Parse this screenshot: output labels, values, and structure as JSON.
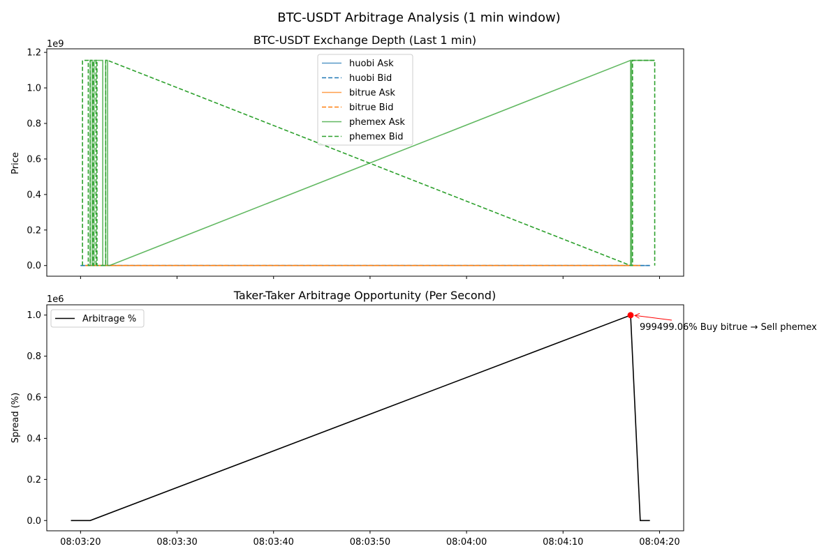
{
  "suptitle": "BTC-USDT Arbitrage Analysis (1 min window)",
  "x_ticks": [
    "08:03:20",
    "08:03:30",
    "08:03:40",
    "08:03:50",
    "08:04:00",
    "08:04:10",
    "08:04:20"
  ],
  "chart_data": [
    {
      "type": "line",
      "title": "BTC-USDT Exchange Depth (Last 1 min)",
      "xlabel": "",
      "ylabel": "Price",
      "y_scale_label": "1e9",
      "xlim": [
        "08:03:16.5",
        "08:04:22.5"
      ],
      "ylim": [
        -0.06,
        1.22
      ],
      "y_ticks": [
        "0.0",
        "0.2",
        "0.4",
        "0.6",
        "0.8",
        "1.0",
        "1.2"
      ],
      "y_unit_multiplier": 1000000000,
      "legend_position": "top-center",
      "grid": false,
      "series": [
        {
          "name": "huobi Ask",
          "color": "#1f77b4",
          "dash": "solid",
          "alpha": 0.75,
          "points": [
            [
              "08:03:20",
              0.0
            ],
            [
              "08:04:19",
              0.0
            ]
          ]
        },
        {
          "name": "huobi Bid",
          "color": "#1f77b4",
          "dash": "dashed",
          "alpha": 1.0,
          "points": [
            [
              "08:03:20",
              0.0
            ],
            [
              "08:04:19",
              0.0
            ]
          ]
        },
        {
          "name": "bitrue Ask",
          "color": "#ff7f0e",
          "dash": "solid",
          "alpha": 0.75,
          "points": [
            [
              "08:03:20.5",
              0.0
            ],
            [
              "08:04:18",
              0.0
            ]
          ]
        },
        {
          "name": "bitrue Bid",
          "color": "#ff7f0e",
          "dash": "dashed",
          "alpha": 1.0,
          "points": [
            [
              "08:03:20.5",
              0.0
            ],
            [
              "08:04:18",
              0.0
            ]
          ]
        },
        {
          "name": "phemex Ask",
          "color": "#2ca02c",
          "dash": "solid",
          "alpha": 0.75,
          "points": [
            [
              "08:03:21",
              0.0
            ],
            [
              "08:03:21",
              1.155
            ],
            [
              "08:03:21.2",
              1.155
            ],
            [
              "08:03:21.2",
              0.0
            ],
            [
              "08:03:21.4",
              0.0
            ],
            [
              "08:03:21.4",
              1.155
            ],
            [
              "08:03:22.3",
              1.155
            ],
            [
              "08:03:22.3",
              0.0
            ],
            [
              "08:03:22.6",
              0.0
            ],
            [
              "08:03:22.6",
              1.155
            ],
            [
              "08:03:22.8",
              1.155
            ],
            [
              "08:03:22.8",
              0.0
            ],
            [
              "08:03:23",
              0.0
            ],
            [
              "08:04:17",
              1.155
            ],
            [
              "08:04:17",
              0.0
            ],
            [
              "08:04:17.1",
              0.0
            ],
            [
              "08:04:17.1",
              1.155
            ],
            [
              "08:04:19.5",
              1.155
            ]
          ]
        },
        {
          "name": "phemex Bid",
          "color": "#2ca02c",
          "dash": "dashed",
          "alpha": 1.0,
          "points": [
            [
              "08:03:20.2",
              0.0
            ],
            [
              "08:03:20.2",
              1.155
            ],
            [
              "08:03:20.8",
              1.155
            ],
            [
              "08:03:20.8",
              0.0
            ],
            [
              "08:03:21",
              0.0
            ],
            [
              "08:03:21",
              1.155
            ],
            [
              "08:03:21.3",
              1.155
            ],
            [
              "08:03:21.3",
              0.0
            ],
            [
              "08:03:21.6",
              0.0
            ],
            [
              "08:03:21.6",
              1.155
            ],
            [
              "08:03:21.7",
              1.155
            ],
            [
              "08:03:21.7",
              0.0
            ],
            [
              "08:03:22.6",
              0.0
            ],
            [
              "08:03:22.6",
              1.155
            ],
            [
              "08:03:22.8",
              1.155
            ],
            [
              "08:04:17",
              0.0
            ],
            [
              "08:04:17.2",
              0.0
            ],
            [
              "08:04:17.2",
              1.155
            ],
            [
              "08:04:19.5",
              1.155
            ],
            [
              "08:04:19.5",
              0.0
            ]
          ]
        }
      ]
    },
    {
      "type": "line",
      "title": "Taker-Taker Arbitrage Opportunity (Per Second)",
      "xlabel": "",
      "ylabel": "Spread (%)",
      "y_scale_label": "1e6",
      "xlim": [
        "08:03:16.5",
        "08:04:22.5"
      ],
      "ylim": [
        -0.05,
        1.05
      ],
      "y_ticks": [
        "0.0",
        "0.2",
        "0.4",
        "0.6",
        "0.8",
        "1.0"
      ],
      "y_unit_multiplier": 1000000,
      "legend_position": "top-left",
      "grid": false,
      "series": [
        {
          "name": "Arbitrage %",
          "color": "#000000",
          "dash": "solid",
          "points": [
            [
              "08:03:19",
              0.0
            ],
            [
              "08:03:21",
              0.0
            ],
            [
              "08:04:17",
              0.9995
            ],
            [
              "08:04:18",
              0.0
            ],
            [
              "08:04:19",
              0.0
            ]
          ]
        }
      ],
      "max_point": {
        "x": "08:04:17",
        "y": 0.9995,
        "color": "#ff0000"
      },
      "annotation": {
        "text": "999499.06% Buy bitrue → Sell phemex",
        "color": "#ff0000"
      }
    }
  ]
}
